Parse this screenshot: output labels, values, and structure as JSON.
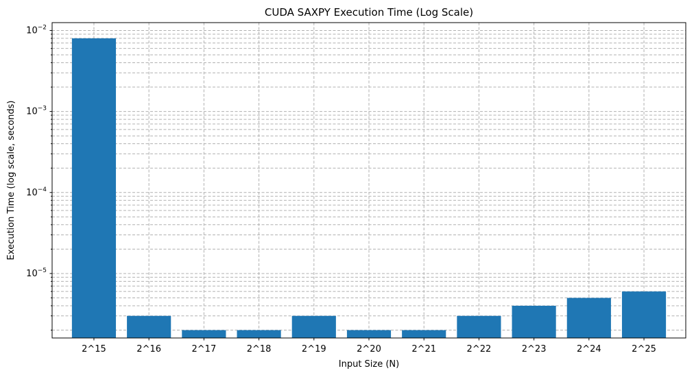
{
  "chart_data": {
    "type": "bar",
    "title": "CUDA SAXPY Execution Time (Log Scale)",
    "xlabel": "Input Size (N)",
    "ylabel": "Execution Time (log scale, seconds)",
    "yscale": "log",
    "ylim": [
      1.6e-06,
      0.0125
    ],
    "grid": true,
    "categories": [
      "2^15",
      "2^16",
      "2^17",
      "2^18",
      "2^19",
      "2^20",
      "2^21",
      "2^22",
      "2^23",
      "2^24",
      "2^25"
    ],
    "values": [
      0.008,
      3e-06,
      2e-06,
      2e-06,
      3e-06,
      2e-06,
      2e-06,
      3e-06,
      4e-06,
      5e-06,
      6e-06
    ],
    "yticks": [
      {
        "base": "10",
        "exp": "−5",
        "value": 1e-05
      },
      {
        "base": "10",
        "exp": "−4",
        "value": 0.0001
      },
      {
        "base": "10",
        "exp": "−3",
        "value": 0.001
      },
      {
        "base": "10",
        "exp": "−2",
        "value": 0.01
      }
    ],
    "colors": {
      "bar": "#1f77b4",
      "grid": "#b0b0b0"
    }
  }
}
